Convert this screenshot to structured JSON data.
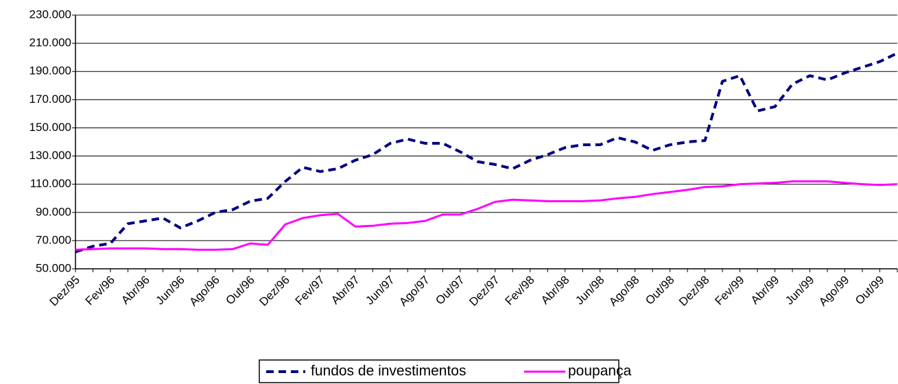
{
  "chart_data": {
    "type": "line",
    "categories": [
      "Dez/95",
      null,
      "Fev/96",
      null,
      "Abr/96",
      null,
      "Jun/96",
      null,
      "Ago/96",
      null,
      "Out/96",
      null,
      "Dez/96",
      null,
      "Fev/97",
      null,
      "Abr/97",
      null,
      "Jun/97",
      null,
      "Ago/97",
      null,
      "Out/97",
      null,
      "Dez/97",
      null,
      "Fev/98",
      null,
      "Abr/98",
      null,
      "Jun/98",
      null,
      "Ago/98",
      null,
      "Out/98",
      null,
      "Dez/98",
      null,
      "Fev/99",
      null,
      "Abr/99",
      null,
      "Jun/99",
      null,
      "Ago/99",
      null,
      "Out/99",
      null
    ],
    "series": [
      {
        "name": "fundos de investimentos",
        "color": "#000080",
        "dashed": true,
        "values": [
          62000,
          66000,
          68000,
          82000,
          84000,
          86000,
          79000,
          84000,
          90000,
          92000,
          98000,
          100000,
          112000,
          122000,
          119000,
          121000,
          127000,
          131000,
          139000,
          142000,
          139000,
          139000,
          133000,
          126000,
          124000,
          121000,
          127000,
          131000,
          136000,
          138000,
          138000,
          143000,
          140000,
          134000,
          138000,
          140000,
          141000,
          183000,
          187000,
          162000,
          165000,
          181000,
          187000,
          184000,
          189000,
          193000,
          197000,
          203000
        ]
      },
      {
        "name": "poupança",
        "color": "#ff00ff",
        "dashed": false,
        "values": [
          63500,
          64000,
          64500,
          64500,
          64500,
          64000,
          64000,
          63500,
          63500,
          64000,
          68000,
          67000,
          81500,
          86000,
          88000,
          89000,
          80000,
          80500,
          82000,
          82500,
          84000,
          88500,
          88500,
          92500,
          97500,
          99000,
          98500,
          98000,
          98000,
          98000,
          98500,
          100000,
          101000,
          103000,
          104500,
          106000,
          108000,
          108500,
          110000,
          110500,
          111000,
          112000,
          112000,
          112000,
          111000,
          110000,
          109500,
          110000
        ]
      }
    ],
    "ylim": [
      50000,
      230000
    ],
    "yticks": [
      {
        "value": 50000,
        "label": "50.000"
      },
      {
        "value": 70000,
        "label": "70.000"
      },
      {
        "value": 90000,
        "label": "90.000"
      },
      {
        "value": 110000,
        "label": "110.000"
      },
      {
        "value": 130000,
        "label": "130.000"
      },
      {
        "value": 150000,
        "label": "150.000"
      },
      {
        "value": 170000,
        "label": "170.000"
      },
      {
        "value": 190000,
        "label": "190.000"
      },
      {
        "value": 210000,
        "label": "210.000"
      },
      {
        "value": 230000,
        "label": "230.000"
      }
    ],
    "grid": true
  }
}
